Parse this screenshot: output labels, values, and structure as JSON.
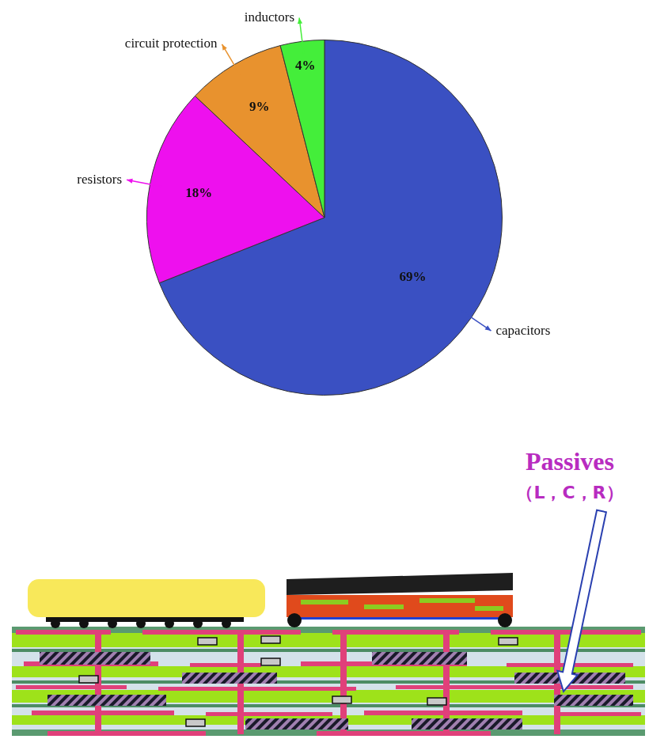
{
  "chart_data": {
    "type": "pie",
    "categories": [
      "capacitors",
      "resistors",
      "circuit protection",
      "inductors"
    ],
    "values": [
      69,
      18,
      9,
      4
    ],
    "value_labels": [
      "69%",
      "18%",
      "9%",
      "4%"
    ],
    "colors": [
      "#3a50c2",
      "#ee10ee",
      "#e8922e",
      "#44ee3a"
    ],
    "data_labels": true
  },
  "diagram": {
    "label": "Passives",
    "sublabel": "（L，C，R）"
  }
}
